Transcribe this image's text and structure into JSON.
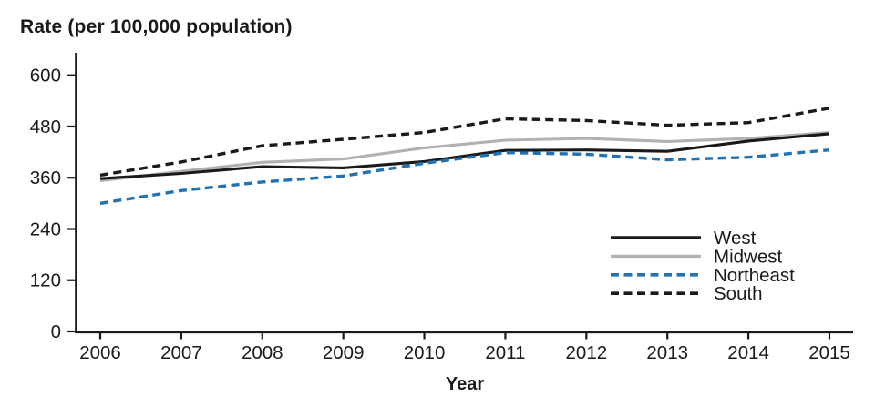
{
  "chart_data": {
    "type": "line",
    "title": "Rate (per 100,000 population)",
    "xlabel": "Year",
    "ylabel": "Rate (per 100,000 population)",
    "x": [
      2006,
      2007,
      2008,
      2009,
      2010,
      2011,
      2012,
      2013,
      2014,
      2015
    ],
    "series": [
      {
        "name": "West",
        "style": "solid",
        "color": "#1a1a1a",
        "values": [
          358,
          370,
          386,
          383,
          398,
          424,
          425,
          422,
          446,
          463
        ]
      },
      {
        "name": "Midwest",
        "style": "solid",
        "color": "#b1b1b1",
        "values": [
          353,
          375,
          396,
          404,
          430,
          448,
          452,
          445,
          452,
          466
        ]
      },
      {
        "name": "Northeast",
        "style": "dashed",
        "color": "#2271b0",
        "values": [
          300,
          330,
          350,
          364,
          394,
          419,
          415,
          402,
          408,
          425
        ]
      },
      {
        "name": "South",
        "style": "dashed",
        "color": "#1a1a1a",
        "values": [
          366,
          397,
          435,
          450,
          466,
          498,
          494,
          483,
          489,
          523
        ]
      }
    ],
    "ylim": [
      0,
      600
    ],
    "yticks": [
      0,
      120,
      240,
      360,
      480,
      600
    ],
    "legend_position": "inside-right-lower",
    "legend_order": [
      "West",
      "Midwest",
      "Northeast",
      "South"
    ],
    "grid": false,
    "axis_color": "#1a1a1a"
  }
}
